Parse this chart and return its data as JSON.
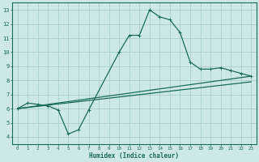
{
  "title": "",
  "xlabel": "Humidex (Indice chaleur)",
  "ylabel": "",
  "bg_color": "#cde8e8",
  "grid_color": "#a8cfcf",
  "line_color": "#1a6b5a",
  "xlim": [
    -0.5,
    23.5
  ],
  "ylim": [
    3.5,
    13.5
  ],
  "xticks": [
    0,
    1,
    2,
    3,
    4,
    5,
    6,
    7,
    8,
    9,
    10,
    11,
    12,
    13,
    14,
    15,
    16,
    17,
    18,
    19,
    20,
    21,
    22,
    23
  ],
  "yticks": [
    4,
    5,
    6,
    7,
    8,
    9,
    10,
    11,
    12,
    13
  ],
  "curve1_x": [
    0,
    1,
    2,
    3,
    4,
    5,
    6,
    7,
    10,
    11,
    12,
    13,
    14,
    15,
    16,
    17,
    18,
    19,
    20,
    21,
    22,
    23
  ],
  "curve1_y": [
    6.0,
    6.4,
    6.3,
    6.2,
    5.9,
    4.2,
    4.5,
    5.9,
    10.0,
    11.2,
    11.2,
    13.0,
    12.5,
    12.3,
    11.4,
    9.3,
    8.8,
    8.8,
    8.9,
    8.7,
    8.5,
    8.3
  ],
  "curve2_x": [
    0,
    23
  ],
  "curve2_y": [
    6.0,
    8.3
  ],
  "curve3_x": [
    0,
    23
  ],
  "curve3_y": [
    6.0,
    7.9
  ],
  "curve1_markers_x": [
    0,
    1,
    2,
    3,
    4,
    5,
    6,
    7,
    10,
    11,
    12,
    13,
    14,
    15,
    16,
    17,
    18,
    19,
    20,
    21,
    22,
    23
  ],
  "curve1_markers_y": [
    6.0,
    6.4,
    6.3,
    6.2,
    5.9,
    4.2,
    4.5,
    5.9,
    10.0,
    11.2,
    11.2,
    13.0,
    12.5,
    12.3,
    11.4,
    9.3,
    8.8,
    8.8,
    8.9,
    8.7,
    8.5,
    8.3
  ]
}
